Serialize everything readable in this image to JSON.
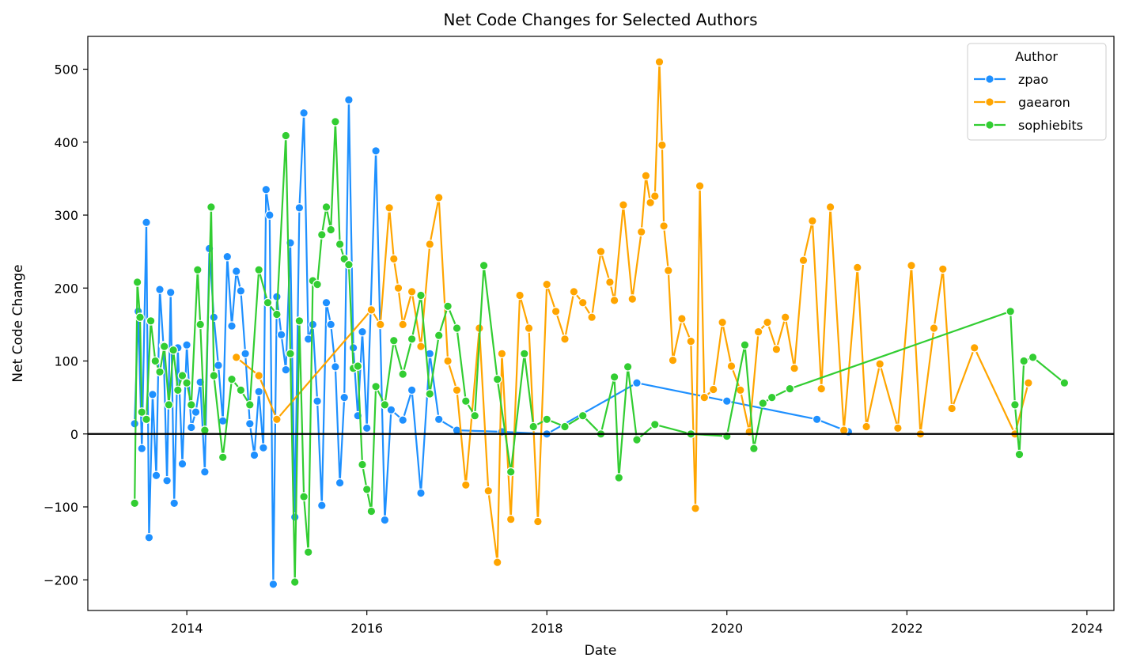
{
  "chart_data": {
    "type": "line",
    "title": "Net Code Changes for Selected Authors",
    "xlabel": "Date",
    "ylabel": "Net Code Change",
    "xlim": [
      2012.9,
      2024.3
    ],
    "ylim": [
      -242,
      545
    ],
    "x_ticks": [
      2014,
      2016,
      2018,
      2020,
      2022,
      2024
    ],
    "x_tick_labels": [
      "2014",
      "2016",
      "2018",
      "2020",
      "2022",
      "2024"
    ],
    "y_ticks": [
      -200,
      -100,
      0,
      100,
      200,
      300,
      400,
      500
    ],
    "y_tick_labels": [
      "−200",
      "−100",
      "0",
      "100",
      "200",
      "300",
      "400",
      "500"
    ],
    "reference_line": {
      "y": 0,
      "color": "#000000"
    },
    "grid": false,
    "legend": {
      "title": "Author",
      "position": "top-right"
    },
    "series": [
      {
        "name": "zpao",
        "color": "#1e90ff",
        "x": [
          2013.42,
          2013.46,
          2013.5,
          2013.55,
          2013.58,
          2013.62,
          2013.66,
          2013.7,
          2013.74,
          2013.78,
          2013.82,
          2013.86,
          2013.9,
          2013.95,
          2014.0,
          2014.05,
          2014.1,
          2014.15,
          2014.2,
          2014.25,
          2014.3,
          2014.35,
          2014.4,
          2014.45,
          2014.5,
          2014.55,
          2014.6,
          2014.65,
          2014.7,
          2014.75,
          2014.8,
          2014.85,
          2014.88,
          2014.92,
          2014.96,
          2015.0,
          2015.05,
          2015.1,
          2015.15,
          2015.2,
          2015.25,
          2015.3,
          2015.35,
          2015.4,
          2015.45,
          2015.5,
          2015.55,
          2015.6,
          2015.65,
          2015.7,
          2015.75,
          2015.8,
          2015.85,
          2015.9,
          2015.95,
          2016.0,
          2016.1,
          2016.2,
          2016.27,
          2016.4,
          2016.5,
          2016.6,
          2016.7,
          2016.8,
          2017.0,
          2017.5,
          2018.0,
          2019.0,
          2020.0,
          2021.0,
          2021.35
        ],
        "y": [
          14,
          168,
          -20,
          290,
          -142,
          54,
          -57,
          198,
          121,
          -64,
          194,
          -95,
          118,
          -41,
          122,
          9,
          30,
          71,
          -52,
          254,
          160,
          94,
          18,
          243,
          148,
          223,
          196,
          110,
          14,
          -29,
          58,
          -19,
          335,
          300,
          -206,
          188,
          136,
          88,
          262,
          -114,
          310,
          440,
          130,
          150,
          45,
          -98,
          180,
          150,
          92,
          -67,
          50,
          458,
          118,
          25,
          140,
          8,
          388,
          -118,
          33,
          19,
          60,
          -81,
          110,
          20,
          5,
          3,
          0,
          70,
          45,
          20,
          3
        ]
      },
      {
        "name": "gaearon",
        "color": "#ffa500",
        "x": [
          2014.55,
          2014.8,
          2015.0,
          2016.05,
          2016.15,
          2016.25,
          2016.3,
          2016.35,
          2016.4,
          2016.5,
          2016.6,
          2016.7,
          2016.8,
          2016.9,
          2017.0,
          2017.1,
          2017.25,
          2017.35,
          2017.45,
          2017.5,
          2017.6,
          2017.7,
          2017.8,
          2017.9,
          2018.0,
          2018.1,
          2018.2,
          2018.3,
          2018.4,
          2018.5,
          2018.6,
          2018.7,
          2018.75,
          2018.85,
          2018.95,
          2019.05,
          2019.1,
          2019.15,
          2019.2,
          2019.25,
          2019.28,
          2019.3,
          2019.35,
          2019.4,
          2019.5,
          2019.6,
          2019.65,
          2019.7,
          2019.75,
          2019.85,
          2019.95,
          2020.05,
          2020.15,
          2020.25,
          2020.35,
          2020.45,
          2020.55,
          2020.65,
          2020.75,
          2020.85,
          2020.95,
          2021.05,
          2021.15,
          2021.3,
          2021.45,
          2021.55,
          2021.7,
          2021.9,
          2022.05,
          2022.15,
          2022.3,
          2022.4,
          2022.5,
          2022.75,
          2023.2,
          2023.35
        ],
        "y": [
          105,
          80,
          20,
          170,
          150,
          310,
          240,
          200,
          150,
          195,
          120,
          260,
          324,
          100,
          60,
          -70,
          145,
          -78,
          -176,
          110,
          -117,
          190,
          145,
          -120,
          205,
          168,
          130,
          195,
          180,
          160,
          250,
          208,
          183,
          314,
          185,
          277,
          354,
          317,
          326,
          510,
          396,
          285,
          224,
          101,
          158,
          127,
          -102,
          340,
          50,
          61,
          153,
          93,
          60,
          3,
          140,
          153,
          116,
          160,
          90,
          238,
          292,
          62,
          311,
          5,
          228,
          10,
          96,
          8,
          231,
          0,
          145,
          226,
          35,
          118,
          0,
          70
        ]
      },
      {
        "name": "sophiebits",
        "color": "#32cd32",
        "x": [
          2013.42,
          2013.45,
          2013.48,
          2013.5,
          2013.55,
          2013.6,
          2013.65,
          2013.7,
          2013.75,
          2013.8,
          2013.85,
          2013.9,
          2013.95,
          2014.0,
          2014.05,
          2014.12,
          2014.15,
          2014.2,
          2014.27,
          2014.3,
          2014.4,
          2014.5,
          2014.6,
          2014.7,
          2014.8,
          2014.9,
          2015.0,
          2015.1,
          2015.15,
          2015.2,
          2015.25,
          2015.3,
          2015.35,
          2015.4,
          2015.45,
          2015.5,
          2015.55,
          2015.6,
          2015.65,
          2015.7,
          2015.75,
          2015.8,
          2015.85,
          2015.9,
          2015.95,
          2016.0,
          2016.05,
          2016.1,
          2016.2,
          2016.3,
          2016.4,
          2016.5,
          2016.6,
          2016.7,
          2016.8,
          2016.9,
          2017.0,
          2017.1,
          2017.2,
          2017.3,
          2017.45,
          2017.6,
          2017.75,
          2017.85,
          2018.0,
          2018.2,
          2018.4,
          2018.6,
          2018.75,
          2018.8,
          2018.9,
          2019.0,
          2019.2,
          2019.6,
          2020.0,
          2020.2,
          2020.3,
          2020.4,
          2020.5,
          2020.7,
          2023.15,
          2023.2,
          2023.25,
          2023.3,
          2023.4,
          2023.75
        ],
        "y": [
          -95,
          208,
          160,
          30,
          20,
          155,
          100,
          85,
          120,
          40,
          115,
          60,
          80,
          70,
          40,
          225,
          150,
          5,
          311,
          80,
          -32,
          75,
          60,
          40,
          225,
          180,
          164,
          409,
          110,
          -203,
          155,
          -86,
          -162,
          210,
          205,
          273,
          311,
          280,
          428,
          260,
          240,
          232,
          90,
          93,
          -42,
          -76,
          -106,
          65,
          40,
          128,
          82,
          130,
          190,
          55,
          135,
          175,
          145,
          45,
          25,
          231,
          75,
          -52,
          110,
          10,
          20,
          10,
          25,
          0,
          78,
          -60,
          92,
          -8,
          13,
          0,
          -3,
          122,
          -20,
          42,
          50,
          62,
          168,
          40,
          -28,
          100,
          105,
          70
        ]
      }
    ]
  }
}
